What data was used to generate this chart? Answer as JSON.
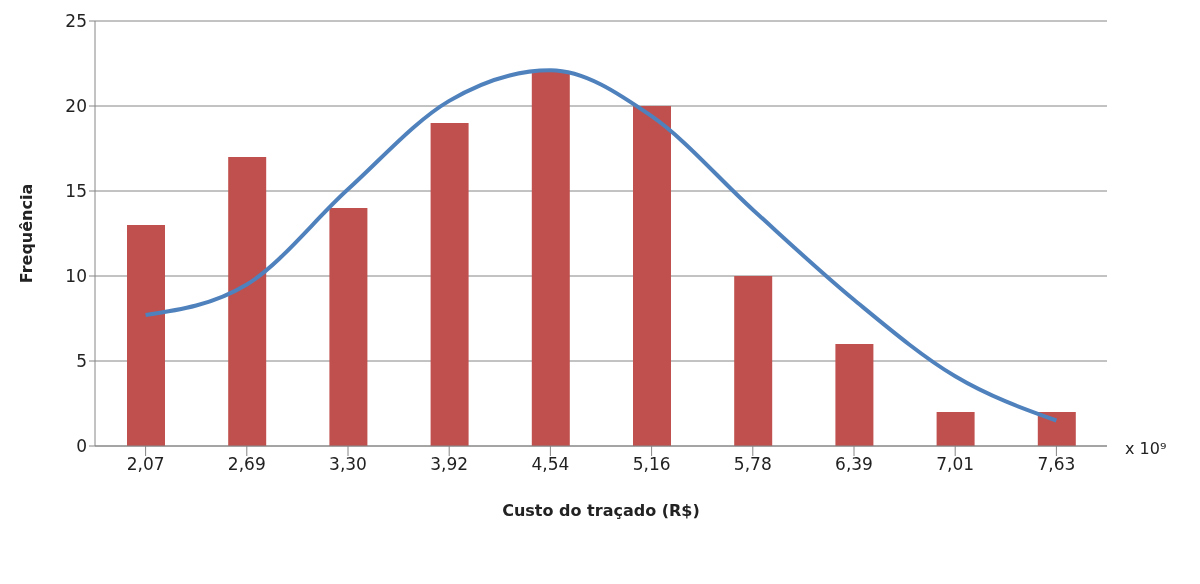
{
  "chart_data": {
    "type": "bar",
    "xlabel": "Custo do traçado (R$)",
    "ylabel": "Frequência",
    "categories": [
      "2,07",
      "2,69",
      "3,30",
      "3,92",
      "4,54",
      "5,16",
      "5,78",
      "6,39",
      "7,01",
      "7,63"
    ],
    "series": [
      {
        "color": "#c0504d",
        "values": [
          13,
          17,
          14,
          19,
          22,
          20,
          10,
          6,
          2,
          2
        ]
      },
      {
        "type": "line",
        "color": "#4f81bd",
        "values": [
          7.7,
          9.5,
          15.1,
          20.3,
          22.1,
          19.4,
          13.9,
          8.6,
          4.1,
          1.5
        ]
      }
    ],
    "ylim": [
      0,
      25
    ],
    "yticks": [
      0,
      5,
      10,
      15,
      20,
      25
    ],
    "grid": "y",
    "legend": false,
    "marker": "none",
    "annotations": [
      "x 10⁹"
    ]
  }
}
